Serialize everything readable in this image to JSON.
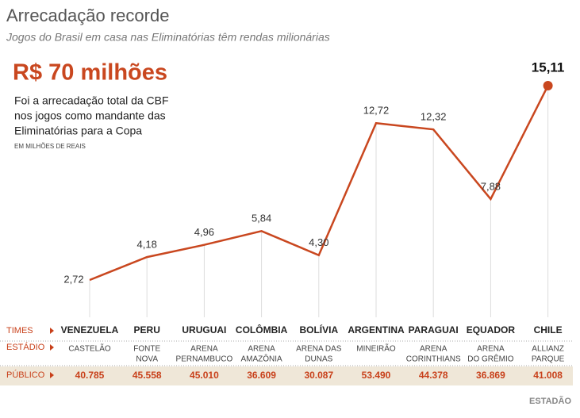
{
  "title": "Arrecadação recorde",
  "subtitle": "Jogos do Brasil em casa nas Eliminatórias têm rendas milionárias",
  "highlight": "R$ 70 milhões",
  "description": [
    "Foi a arrecadação total da CBF",
    "nos jogos como mandante das",
    "Eliminatórias para a Copa"
  ],
  "chart_data": {
    "type": "line",
    "unit_note": "EM MILHÕES DE REAIS",
    "categories": [
      "VENEZUELA",
      "PERU",
      "URUGUAI",
      "COLÔMBIA",
      "BOLÍVIA",
      "ARGENTINA",
      "PARAGUAI",
      "EQUADOR",
      "CHILE"
    ],
    "values": [
      2.72,
      4.18,
      4.96,
      5.84,
      4.3,
      12.72,
      12.32,
      7.88,
      15.11
    ],
    "value_labels": [
      "2,72",
      "4,18",
      "4,96",
      "5,84",
      "4,30",
      "12,72",
      "12,32",
      "7,88",
      "15,11"
    ],
    "color": "#c9471f"
  },
  "table": {
    "row_labels": [
      "TIMES",
      "ESTÁDIO",
      "PÚBLICO"
    ],
    "stadiums": [
      [
        "CASTELÃO"
      ],
      [
        "FONTE",
        "NOVA"
      ],
      [
        "ARENA",
        "PERNAMBUCO"
      ],
      [
        "ARENA",
        "AMAZÔNIA"
      ],
      [
        "ARENA DAS",
        "DUNAS"
      ],
      [
        "MINEIRÃO"
      ],
      [
        "ARENA",
        "CORINTHIANS"
      ],
      [
        "ARENA",
        "DO GRÊMIO"
      ],
      [
        "ALLIANZ",
        "PARQUE"
      ]
    ],
    "attendance": [
      "40.785",
      "45.558",
      "45.010",
      "36.609",
      "30.087",
      "53.490",
      "44.378",
      "36.869",
      "41.008"
    ]
  },
  "source": "ESTADÃO"
}
